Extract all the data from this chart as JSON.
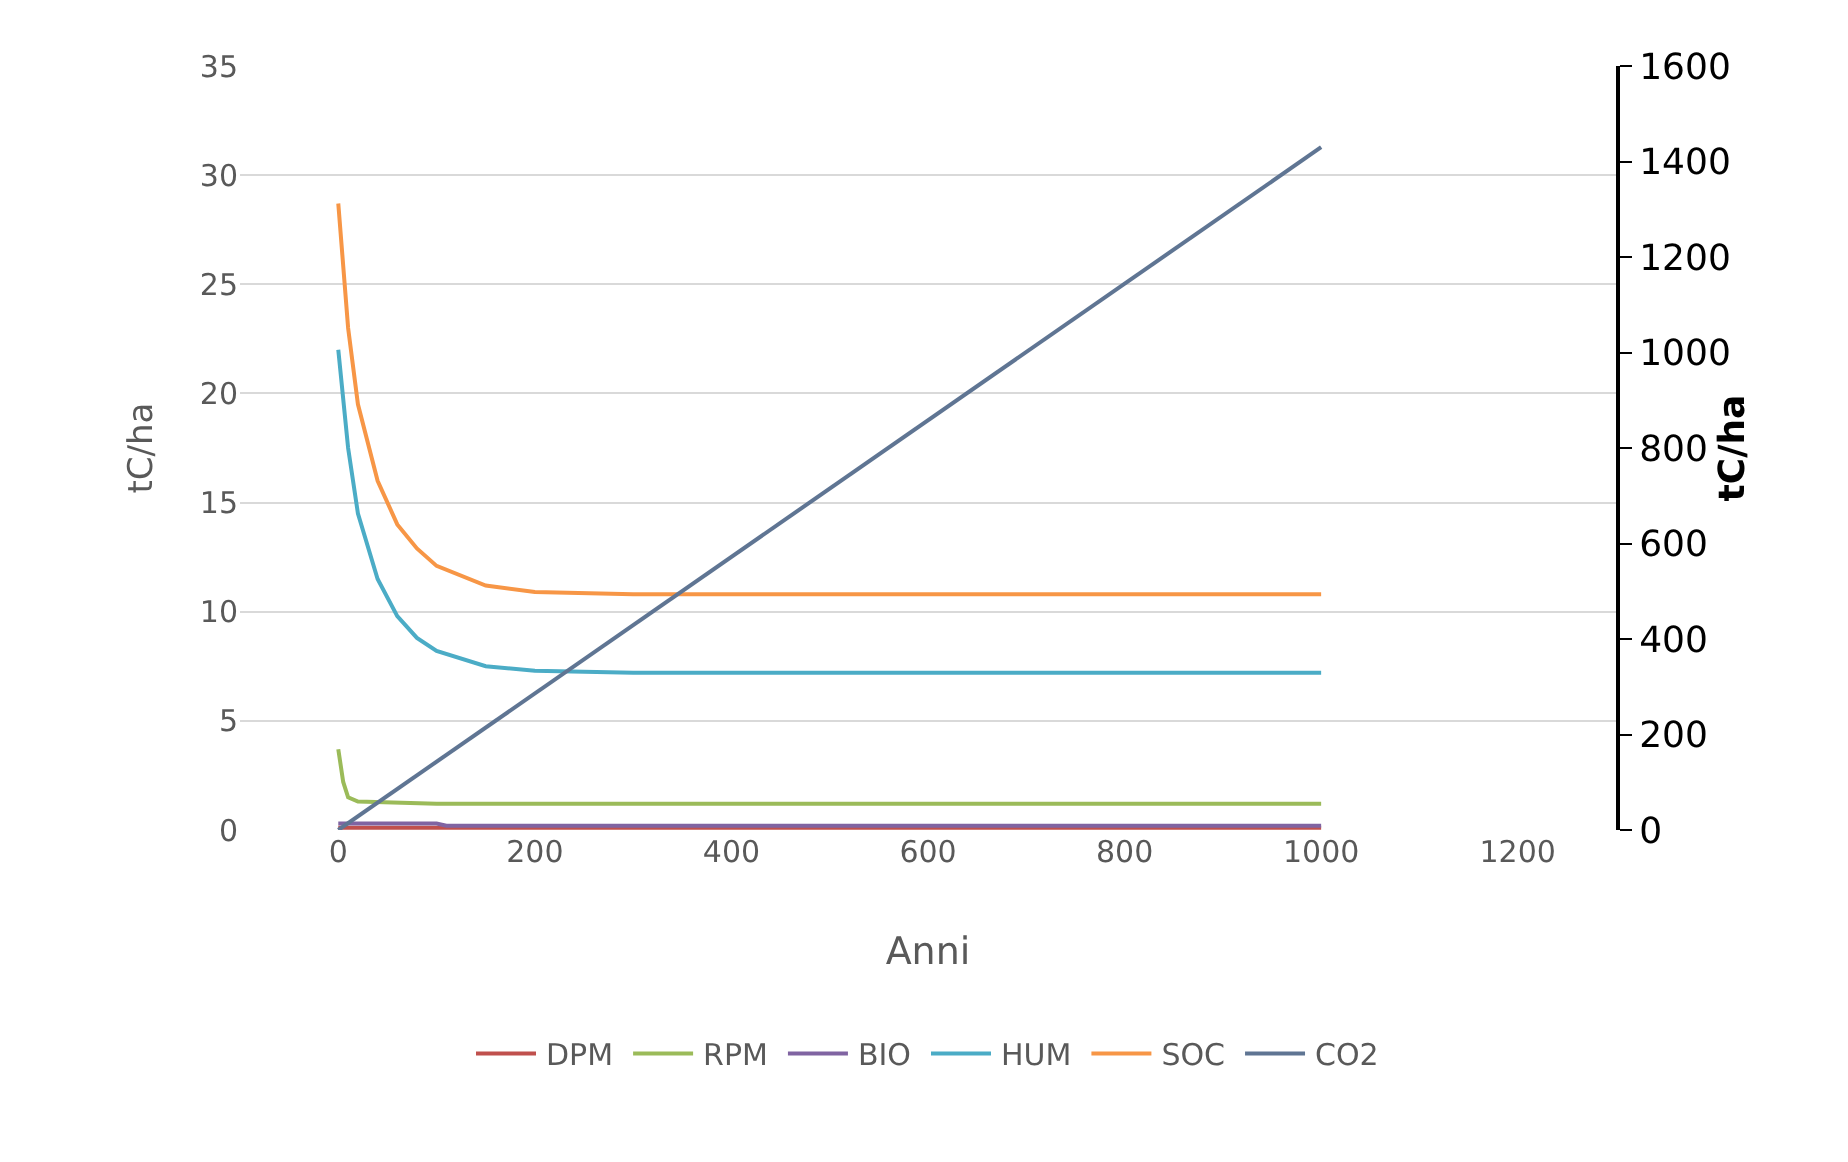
{
  "chart_data": {
    "type": "line",
    "xlabel": "Anni",
    "ylabel": "tC/ha",
    "y2label": "tC/ha",
    "xlim": [
      -100,
      1300
    ],
    "xticks": [
      0,
      200,
      400,
      600,
      800,
      1000,
      1200
    ],
    "ylim": [
      0,
      35
    ],
    "yticks": [
      0,
      5,
      10,
      15,
      20,
      25,
      30,
      35
    ],
    "y2lim": [
      0,
      1600
    ],
    "y2ticks": [
      0,
      200,
      400,
      600,
      800,
      1000,
      1200,
      1400,
      1600
    ],
    "grid": "y",
    "legend": "bottom",
    "marker": "none",
    "line_style": "solid",
    "series": [
      {
        "name": "DPM",
        "color": "#c0504d",
        "x": [
          0,
          1000
        ],
        "values": [
          0.1,
          0.1
        ]
      },
      {
        "name": "RPM",
        "color": "#9bbb59",
        "x": [
          0,
          5,
          10,
          20,
          100,
          1000
        ],
        "values": [
          3.7,
          2.2,
          1.5,
          1.3,
          1.2,
          1.2
        ]
      },
      {
        "name": "BIO",
        "color": "#8064a2",
        "x": [
          0,
          100,
          110,
          1000
        ],
        "values": [
          0.3,
          0.3,
          0.2,
          0.2
        ]
      },
      {
        "name": "HUM",
        "color": "#4bacc6",
        "x": [
          0,
          10,
          20,
          40,
          60,
          80,
          100,
          150,
          200,
          300,
          1000
        ],
        "values": [
          22,
          17.5,
          14.5,
          11.5,
          9.8,
          8.8,
          8.2,
          7.5,
          7.3,
          7.2,
          7.2
        ]
      },
      {
        "name": "SOC",
        "color": "#f79646",
        "x": [
          0,
          10,
          20,
          40,
          60,
          80,
          100,
          150,
          200,
          300,
          1000
        ],
        "values": [
          28.7,
          23,
          19.5,
          16,
          14,
          12.9,
          12.1,
          11.2,
          10.9,
          10.8,
          10.8
        ]
      },
      {
        "name": "CO2",
        "color": "#5f7593",
        "axis": "y2",
        "x": [
          0,
          1000
        ],
        "values": [
          0,
          1430
        ]
      }
    ]
  }
}
